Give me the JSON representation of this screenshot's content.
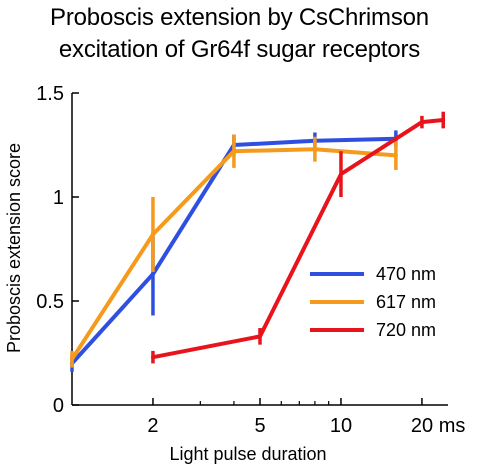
{
  "chart_data": {
    "type": "line",
    "title_lines": [
      "Proboscis extension by CsChrimson",
      "excitation of Gr64f sugar receptors"
    ],
    "xlabel": "Light pulse duration",
    "ylabel": "Proboscis extension score",
    "x_scale": "log",
    "xlim": [
      1,
      25
    ],
    "ylim": [
      0,
      1.5
    ],
    "x_ticks": [
      2,
      5,
      10,
      20
    ],
    "x_tick_labels": [
      "2",
      "5",
      "10",
      "20 ms"
    ],
    "y_ticks": [
      0,
      0.5,
      1,
      1.5
    ],
    "y_tick_labels": [
      "0",
      "0.5",
      "1",
      "1.5"
    ],
    "legend_position": "bottom-right",
    "series": [
      {
        "name": "470 nm",
        "color": "#2f4fe0",
        "x": [
          1,
          2,
          4,
          8,
          16
        ],
        "y": [
          0.2,
          0.63,
          1.25,
          1.27,
          1.28
        ],
        "err": [
          0.04,
          0.2,
          0.05,
          0.04,
          0.04
        ]
      },
      {
        "name": "617 nm",
        "color": "#f59a1c",
        "x": [
          1,
          2,
          4,
          8,
          16
        ],
        "y": [
          0.22,
          0.82,
          1.22,
          1.23,
          1.2
        ],
        "err": [
          0.04,
          0.18,
          0.08,
          0.06,
          0.07
        ]
      },
      {
        "name": "720 nm",
        "color": "#e8141b",
        "x": [
          2,
          5,
          10,
          20,
          24
        ],
        "y": [
          0.23,
          0.33,
          1.11,
          1.36,
          1.37
        ],
        "err": [
          0.03,
          0.04,
          0.11,
          0.03,
          0.04
        ]
      }
    ]
  }
}
